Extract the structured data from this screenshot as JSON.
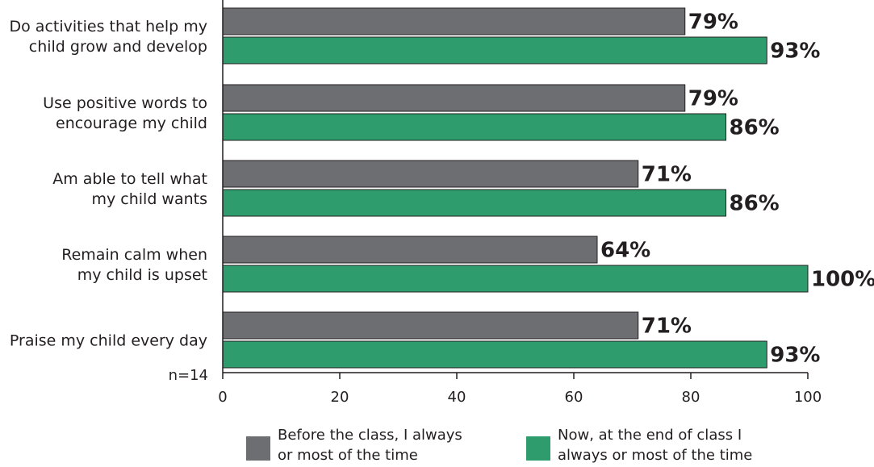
{
  "chart_data": {
    "type": "bar",
    "orientation": "horizontal",
    "categories": [
      [
        "Do activities that help my",
        "child grow and develop"
      ],
      [
        "Use positive words to",
        "encourage my child"
      ],
      [
        "Am able to tell what",
        "my child wants"
      ],
      [
        "Remain calm when",
        "my child is upset"
      ],
      [
        "Praise my child every day"
      ]
    ],
    "series": [
      {
        "name": [
          "Before the class, I always",
          "or most of the time"
        ],
        "color": "#6d6e71",
        "values": [
          79,
          79,
          71,
          64,
          71
        ],
        "labels": [
          "79%",
          "79%",
          "71%",
          "64%",
          "71%"
        ]
      },
      {
        "name": [
          "Now, at the end of class I",
          "always or most of the time"
        ],
        "color": "#2e9c6c",
        "values": [
          93,
          86,
          86,
          100,
          93
        ],
        "labels": [
          "93%",
          "86%",
          "86%",
          "100%",
          "93%"
        ]
      }
    ],
    "xlim": [
      0,
      100
    ],
    "xticks": [
      "0",
      "20",
      "40",
      "60",
      "80",
      "100"
    ],
    "note": "n=14",
    "legend_position": "bottom",
    "grid": false
  }
}
